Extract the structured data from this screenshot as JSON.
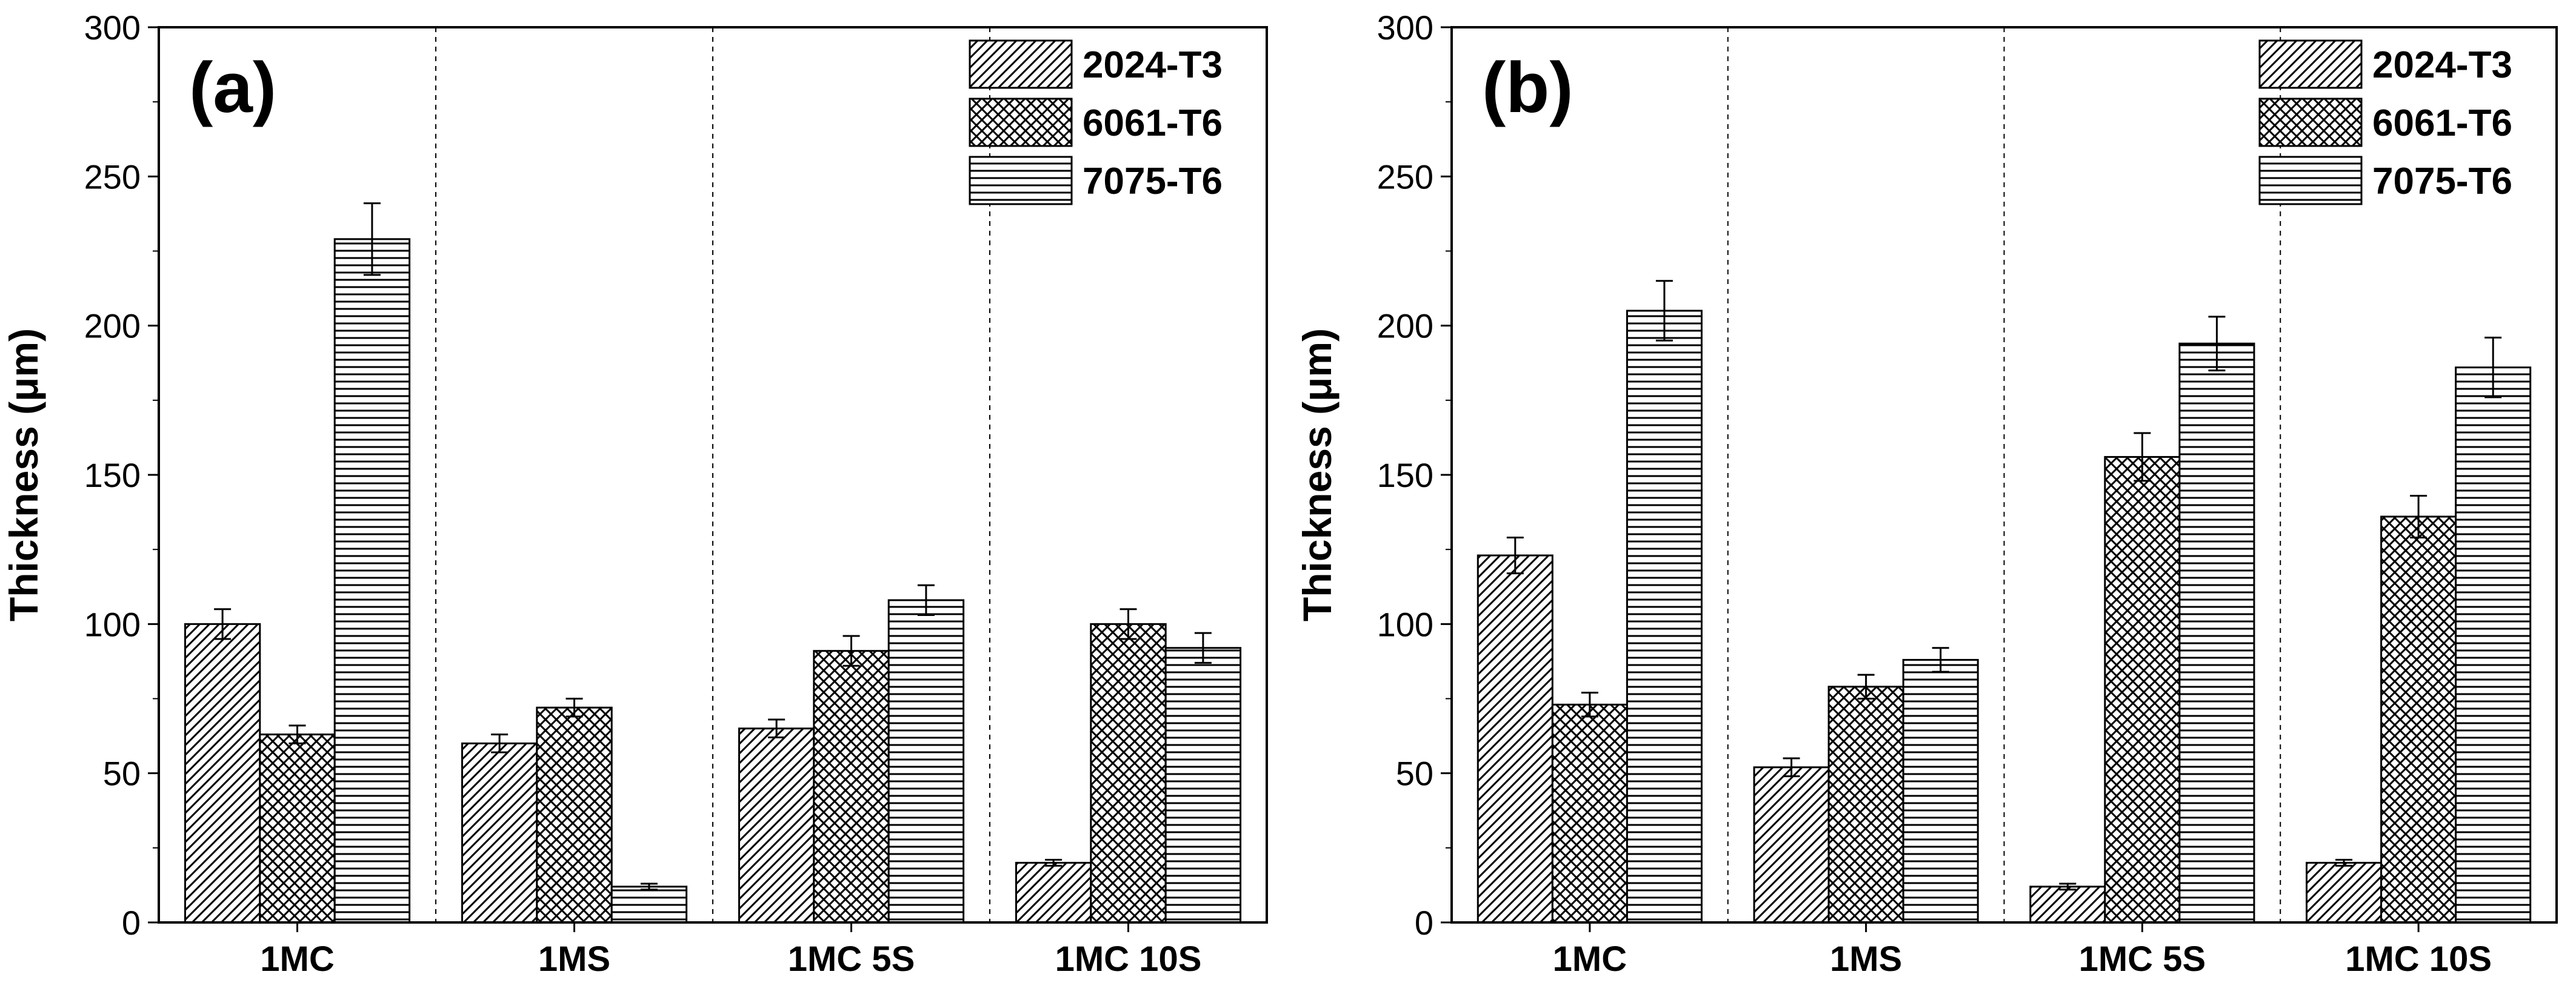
{
  "chart_data": [
    {
      "type": "bar",
      "panel_label": "(a)",
      "xlabel": "",
      "ylabel": "Thickness (μm)",
      "ylim": [
        0,
        300
      ],
      "yticks": [
        "0",
        "50",
        "100",
        "150",
        "200",
        "250",
        "300"
      ],
      "categories": [
        "1MC",
        "1MS",
        "1MC 5S",
        "1MC 10S"
      ],
      "legend_position": "top-right",
      "series": [
        {
          "name": "2024-T3",
          "pattern": "diagonal",
          "values": [
            100,
            60,
            65,
            20
          ],
          "errors": [
            5,
            3,
            3,
            1
          ]
        },
        {
          "name": "6061-T6",
          "pattern": "crosshatch",
          "values": [
            63,
            72,
            91,
            100
          ],
          "errors": [
            3,
            3,
            5,
            5
          ]
        },
        {
          "name": "7075-T6",
          "pattern": "horizontal",
          "values": [
            229,
            12,
            108,
            92
          ],
          "errors": [
            12,
            1,
            5,
            5
          ]
        }
      ]
    },
    {
      "type": "bar",
      "panel_label": "(b)",
      "xlabel": "",
      "ylabel": "Thickness (μm)",
      "ylim": [
        0,
        300
      ],
      "yticks": [
        "0",
        "50",
        "100",
        "150",
        "200",
        "250",
        "300"
      ],
      "categories": [
        "1MC",
        "1MS",
        "1MC 5S",
        "1MC 10S"
      ],
      "legend_position": "top-right",
      "series": [
        {
          "name": "2024-T3",
          "pattern": "diagonal",
          "values": [
            123,
            52,
            12,
            20
          ],
          "errors": [
            6,
            3,
            1,
            1
          ]
        },
        {
          "name": "6061-T6",
          "pattern": "crosshatch",
          "values": [
            73,
            79,
            156,
            136
          ],
          "errors": [
            4,
            4,
            8,
            7
          ]
        },
        {
          "name": "7075-T6",
          "pattern": "horizontal",
          "values": [
            205,
            88,
            194,
            186
          ],
          "errors": [
            10,
            4,
            9,
            10
          ]
        }
      ]
    }
  ]
}
